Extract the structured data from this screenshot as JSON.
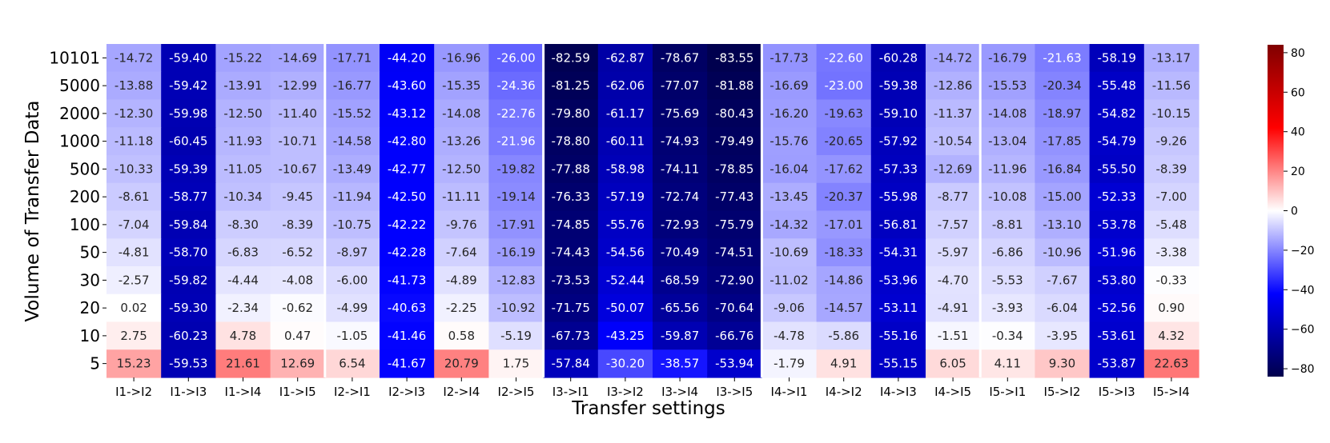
{
  "chart_data": {
    "type": "heatmap",
    "xlabel": "Transfer settings",
    "ylabel": "Volume of Transfer Data",
    "x": [
      "I1->I2",
      "I1->I3",
      "I1->I4",
      "I1->I5",
      "I2->I1",
      "I2->I3",
      "I2->I4",
      "I2->I5",
      "I3->I1",
      "I3->I2",
      "I3->I4",
      "I3->I5",
      "I4->I1",
      "I4->I2",
      "I4->I3",
      "I4->I5",
      "I5->I1",
      "I5->I2",
      "I5->I3",
      "I5->I4"
    ],
    "y": [
      "10101",
      "5000",
      "2000",
      "1000",
      "500",
      "200",
      "100",
      "50",
      "30",
      "20",
      "10",
      "5"
    ],
    "values": [
      [
        -14.72,
        -59.4,
        -15.22,
        -14.69,
        -17.71,
        -44.2,
        -16.96,
        -26.0,
        -82.59,
        -62.87,
        -78.67,
        -83.55,
        -17.73,
        -22.6,
        -60.28,
        -14.72,
        -16.79,
        -21.63,
        -58.19,
        -13.17
      ],
      [
        -13.88,
        -59.42,
        -13.91,
        -12.99,
        -16.77,
        -43.6,
        -15.35,
        -24.36,
        -81.25,
        -62.06,
        -77.07,
        -81.88,
        -16.69,
        -23.0,
        -59.38,
        -12.86,
        -15.53,
        -20.34,
        -55.48,
        -11.56
      ],
      [
        -12.3,
        -59.98,
        -12.5,
        -11.4,
        -15.52,
        -43.12,
        -14.08,
        -22.76,
        -79.8,
        -61.17,
        -75.69,
        -80.43,
        -16.2,
        -19.63,
        -59.1,
        -11.37,
        -14.08,
        -18.97,
        -54.82,
        -10.15
      ],
      [
        -11.18,
        -60.45,
        -11.93,
        -10.71,
        -14.58,
        -42.8,
        -13.26,
        -21.96,
        -78.8,
        -60.11,
        -74.93,
        -79.49,
        -15.76,
        -20.65,
        -57.92,
        -10.54,
        -13.04,
        -17.85,
        -54.79,
        -9.26
      ],
      [
        -10.33,
        -59.39,
        -11.05,
        -10.67,
        -13.49,
        -42.77,
        -12.5,
        -19.82,
        -77.88,
        -58.98,
        -74.11,
        -78.85,
        -16.04,
        -17.62,
        -57.33,
        -12.69,
        -11.96,
        -16.84,
        -55.5,
        -8.39
      ],
      [
        -8.61,
        -58.77,
        -10.34,
        -9.45,
        -11.94,
        -42.5,
        -11.11,
        -19.14,
        -76.33,
        -57.19,
        -72.74,
        -77.43,
        -13.45,
        -20.37,
        -55.98,
        -8.77,
        -10.08,
        -15.0,
        -52.33,
        -7.0
      ],
      [
        -7.04,
        -59.84,
        -8.3,
        -8.39,
        -10.75,
        -42.22,
        -9.76,
        -17.91,
        -74.85,
        -55.76,
        -72.93,
        -75.79,
        -14.32,
        -17.01,
        -56.81,
        -7.57,
        -8.81,
        -13.1,
        -53.78,
        -5.48
      ],
      [
        -4.81,
        -58.7,
        -6.83,
        -6.52,
        -8.97,
        -42.28,
        -7.64,
        -16.19,
        -74.43,
        -54.56,
        -70.49,
        -74.51,
        -10.69,
        -18.33,
        -54.31,
        -5.97,
        -6.86,
        -10.96,
        -51.96,
        -3.38
      ],
      [
        -2.57,
        -59.82,
        -4.44,
        -4.08,
        -6.0,
        -41.73,
        -4.89,
        -12.83,
        -73.53,
        -52.44,
        -68.59,
        -72.9,
        -11.02,
        -14.86,
        -53.96,
        -4.7,
        -5.53,
        -7.67,
        -53.8,
        -0.33
      ],
      [
        0.02,
        -59.3,
        -2.34,
        -0.62,
        -4.99,
        -40.63,
        -2.25,
        -10.92,
        -71.75,
        -50.07,
        -65.56,
        -70.64,
        -9.06,
        -14.57,
        -53.11,
        -4.91,
        -3.93,
        -6.04,
        -52.56,
        0.9
      ],
      [
        2.75,
        -60.23,
        4.78,
        0.47,
        -1.05,
        -41.46,
        0.58,
        -5.19,
        -67.73,
        -43.25,
        -59.87,
        -66.76,
        -4.78,
        -5.86,
        -55.16,
        -1.51,
        -0.34,
        -3.95,
        -53.61,
        4.32
      ],
      [
        15.23,
        -59.53,
        21.61,
        12.69,
        6.54,
        -41.67,
        20.79,
        1.75,
        -57.84,
        -30.2,
        -38.57,
        -53.94,
        -1.79,
        4.91,
        -55.15,
        6.05,
        4.11,
        9.3,
        -53.87,
        22.63
      ]
    ],
    "labels": [
      [
        "-14.72",
        "-59.40",
        "-15.22",
        "-14.69",
        "-17.71",
        "-44.20",
        "-16.96",
        "-26.00",
        "-82.59",
        "-62.87",
        "-78.67",
        "-83.55",
        "-17.73",
        "-22.60",
        "-60.28",
        "-14.72",
        "-16.79",
        "-21.63",
        "-58.19",
        "-13.17"
      ],
      [
        "-13.88",
        "-59.42",
        "-13.91",
        "-12.99",
        "-16.77",
        "-43.60",
        "-15.35",
        "-24.36",
        "-81.25",
        "-62.06",
        "-77.07",
        "-81.88",
        "-16.69",
        "-23.00",
        "-59.38",
        "-12.86",
        "-15.53",
        "-20.34",
        "-55.48",
        "-11.56"
      ],
      [
        "-12.30",
        "-59.98",
        "-12.50",
        "-11.40",
        "-15.52",
        "-43.12",
        "-14.08",
        "-22.76",
        "-79.80",
        "-61.17",
        "-75.69",
        "-80.43",
        "-16.20",
        "-19.63",
        "-59.10",
        "-11.37",
        "-14.08",
        "-18.97",
        "-54.82",
        "-10.15"
      ],
      [
        "-11.18",
        "-60.45",
        "-11.93",
        "-10.71",
        "-14.58",
        "-42.80",
        "-13.26",
        "-21.96",
        "-78.80",
        "-60.11",
        "-74.93",
        "-79.49",
        "-15.76",
        "-20.65",
        "-57.92",
        "-10.54",
        "-13.04",
        "-17.85",
        "-54.79",
        "-9.26"
      ],
      [
        "-10.33",
        "-59.39",
        "-11.05",
        "-10.67",
        "-13.49",
        "-42.77",
        "-12.50",
        "-19.82",
        "-77.88",
        "-58.98",
        "-74.11",
        "-78.85",
        "-16.04",
        "-17.62",
        "-57.33",
        "-12.69",
        "-11.96",
        "-16.84",
        "-55.50",
        "-8.39"
      ],
      [
        "-8.61",
        "-58.77",
        "-10.34",
        "-9.45",
        "-11.94",
        "-42.50",
        "-11.11",
        "-19.14",
        "-76.33",
        "-57.19",
        "-72.74",
        "-77.43",
        "-13.45",
        "-20.37",
        "-55.98",
        "-8.77",
        "-10.08",
        "-15.00",
        "-52.33",
        "-7.00"
      ],
      [
        "-7.04",
        "-59.84",
        "-8.30",
        "-8.39",
        "-10.75",
        "-42.22",
        "-9.76",
        "-17.91",
        "-74.85",
        "-55.76",
        "-72.93",
        "-75.79",
        "-14.32",
        "-17.01",
        "-56.81",
        "-7.57",
        "-8.81",
        "-13.10",
        "-53.78",
        "-5.48"
      ],
      [
        "-4.81",
        "-58.70",
        "-6.83",
        "-6.52",
        "-8.97",
        "-42.28",
        "-7.64",
        "-16.19",
        "-74.43",
        "-54.56",
        "-70.49",
        "-74.51",
        "-10.69",
        "-18.33",
        "-54.31",
        "-5.97",
        "-6.86",
        "-10.96",
        "-51.96",
        "-3.38"
      ],
      [
        "-2.57",
        "-59.82",
        "-4.44",
        "-4.08",
        "-6.00",
        "-41.73",
        "-4.89",
        "-12.83",
        "-73.53",
        "-52.44",
        "-68.59",
        "-72.90",
        "-11.02",
        "-14.86",
        "-53.96",
        "-4.70",
        "-5.53",
        "-7.67",
        "-53.80",
        "-0.33"
      ],
      [
        "0.02",
        "-59.30",
        "-2.34",
        "-0.62",
        "-4.99",
        "-40.63",
        "-2.25",
        "-10.92",
        "-71.75",
        "-50.07",
        "-65.56",
        "-70.64",
        "-9.06",
        "-14.57",
        "-53.11",
        "-4.91",
        "-3.93",
        "-6.04",
        "-52.56",
        "0.90"
      ],
      [
        "2.75",
        "-60.23",
        "4.78",
        "0.47",
        "-1.05",
        "-41.46",
        "0.58",
        "-5.19",
        "-67.73",
        "-43.25",
        "-59.87",
        "-66.76",
        "-4.78",
        "-5.86",
        "-55.16",
        "-1.51",
        "-0.34",
        "-3.95",
        "-53.61",
        "4.32"
      ],
      [
        "15.23",
        "-59.53",
        "21.61",
        "12.69",
        "6.54",
        "-41.67",
        "20.79",
        "1.75",
        "-57.84",
        "-30.20",
        "-38.57",
        "-53.94",
        "-1.79",
        "4.91",
        "-55.15",
        "6.05",
        "4.11",
        "9.30",
        "-53.87",
        "22.63"
      ]
    ],
    "colormap": "seismic",
    "vmin": -84,
    "vmax": 84,
    "colorbar_ticks": [
      -80,
      -60,
      -40,
      -20,
      0,
      20,
      40,
      60,
      80
    ],
    "group_separators_after_column": [
      3,
      7,
      11,
      15
    ],
    "grid": false
  }
}
